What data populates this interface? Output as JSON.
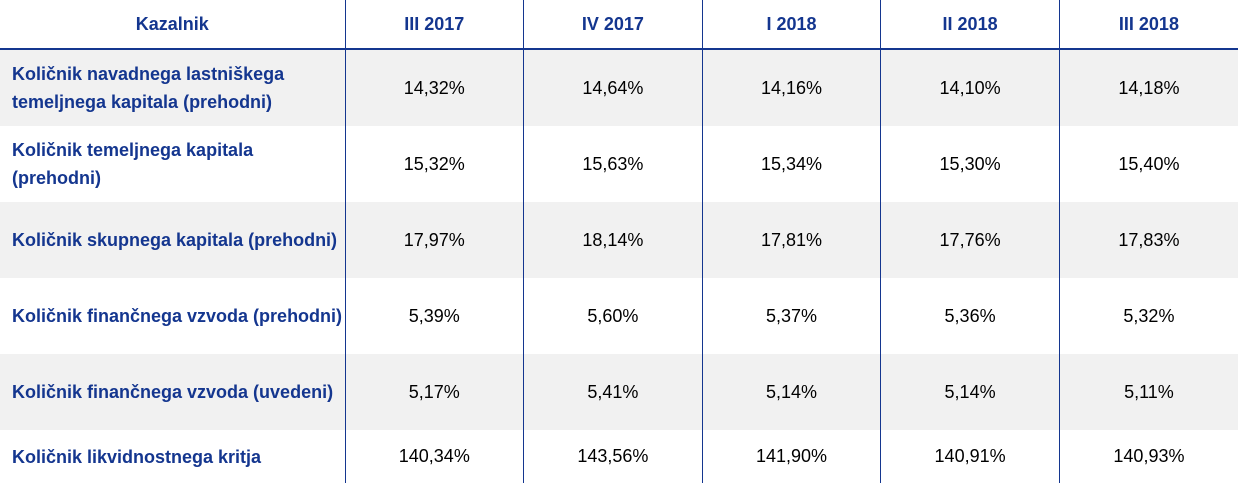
{
  "header": {
    "indicator": "Kazalnik",
    "periods": [
      "III 2017",
      "IV 2017",
      "I 2018",
      "II 2018",
      "III 2018"
    ]
  },
  "rows": [
    {
      "label": "Količnik navadnega lastniškega temeljnega kapitala (prehodni)",
      "values": [
        "14,32%",
        "14,64%",
        "14,16%",
        "14,10%",
        "14,18%"
      ]
    },
    {
      "label": "Količnik temeljnega kapitala (prehodni)",
      "values": [
        "15,32%",
        "15,63%",
        "15,34%",
        "15,30%",
        "15,40%"
      ]
    },
    {
      "label": "Količnik skupnega kapitala (prehodni)",
      "values": [
        "17,97%",
        "18,14%",
        "17,81%",
        "17,76%",
        "17,83%"
      ]
    },
    {
      "label": "Količnik finančnega vzvoda (prehodni)",
      "values": [
        "5,39%",
        "5,60%",
        "5,37%",
        "5,36%",
        "5,32%"
      ]
    },
    {
      "label": "Količnik finančnega vzvoda (uvedeni)",
      "values": [
        "5,17%",
        "5,41%",
        "5,14%",
        "5,14%",
        "5,11%"
      ]
    },
    {
      "label": "Količnik likvidnostnega kritja",
      "values": [
        "140,34%",
        "143,56%",
        "141,90%",
        "140,91%",
        "140,93%"
      ]
    }
  ],
  "colors": {
    "accent": "#14368f",
    "shade": "#f1f1f1"
  }
}
